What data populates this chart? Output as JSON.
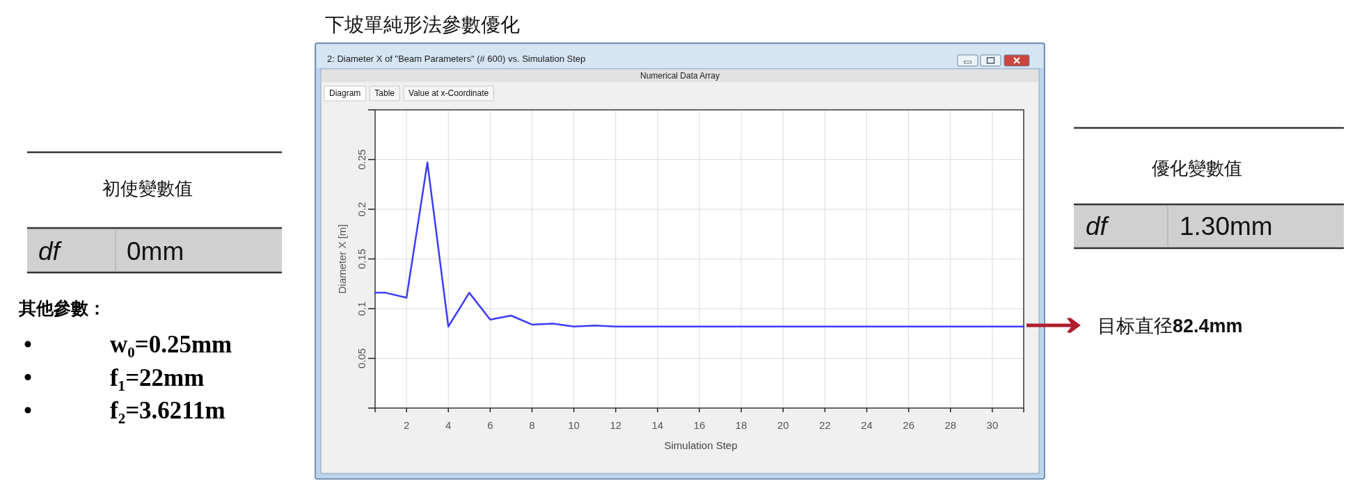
{
  "chart_data": [
    {
      "type": "other",
      "annotations": [
        "初使變數值",
        "df",
        "0mm",
        "其他參數：",
        "w₀=0.25mm",
        "f₁=22mm",
        "f₂=3.6211m"
      ]
    },
    {
      "type": "line",
      "title": "下坡單純形法參數優化",
      "subtitle": "2: Diameter X of \"Beam Parameters\" (# 600) vs. Simulation Step",
      "xlabel": "Simulation Step",
      "ylabel": "Diameter X [m]",
      "x": [
        0.5,
        1,
        2,
        3,
        4,
        5,
        6,
        7,
        8,
        9,
        10,
        11,
        12,
        13,
        14,
        15,
        16,
        17,
        18,
        19,
        20,
        21,
        22,
        23,
        24,
        25,
        26,
        27,
        28,
        29,
        30,
        31,
        31.5
      ],
      "values": [
        0.116,
        0.116,
        0.111,
        0.247,
        0.082,
        0.116,
        0.089,
        0.093,
        0.084,
        0.085,
        0.082,
        0.083,
        0.082,
        0.082,
        0.082,
        0.082,
        0.082,
        0.082,
        0.082,
        0.082,
        0.082,
        0.082,
        0.082,
        0.082,
        0.082,
        0.082,
        0.082,
        0.082,
        0.082,
        0.082,
        0.082,
        0.082,
        0.082
      ],
      "color": "#3c3cff",
      "xlim": [
        0.5,
        31.5
      ],
      "xticks": [
        {
          "value": 0.5,
          "label": null
        },
        2,
        4,
        6,
        8,
        10,
        12,
        14,
        16,
        18,
        20,
        22,
        24,
        26,
        28,
        30,
        {
          "value": 31.5,
          "label": null
        }
      ],
      "ylim": [
        0,
        0.3
      ],
      "yticks": [
        {
          "value": 0,
          "label": null
        },
        0.05,
        0.1,
        0.15,
        0.2,
        0.25,
        {
          "value": 0.3,
          "label": null
        }
      ],
      "grid": true,
      "annotations": [
        "Numerical Data Array",
        "Diagram",
        "Table",
        "Value at x-Coordinate",
        "目标直径82.4mm"
      ]
    },
    {
      "type": "other",
      "annotations": [
        "優化變數值",
        "df",
        "1.30mm"
      ]
    }
  ]
}
